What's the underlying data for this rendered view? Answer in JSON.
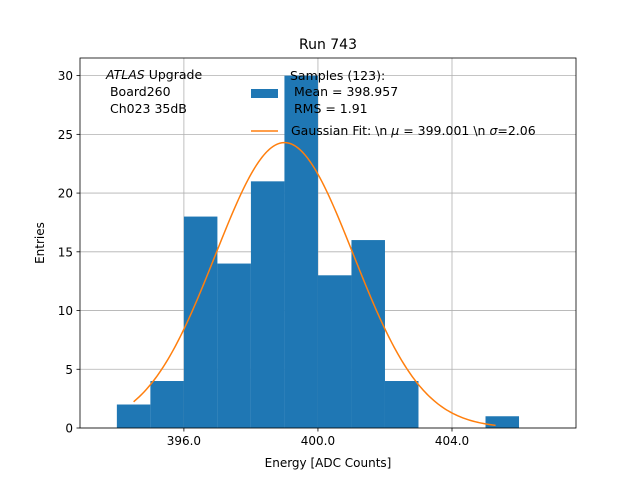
{
  "chart_data": {
    "type": "bar",
    "title": "Run 743",
    "xlabel": "Energy [ADC Counts]",
    "ylabel": "Entries",
    "xlim": [
      392.9,
      407.7
    ],
    "ylim": [
      0,
      31.5
    ],
    "grid": true,
    "xticks": [
      396,
      400,
      404
    ],
    "xtick_labels": [
      "396.0",
      "400.0",
      "404.0"
    ],
    "yticks": [
      0,
      5,
      10,
      15,
      20,
      25,
      30
    ],
    "ytick_labels": [
      "0",
      "5",
      "10",
      "15",
      "20",
      "25",
      "30"
    ],
    "histogram": {
      "name": "Samples",
      "color": "#1f77b4",
      "bin_edges": [
        394,
        395,
        396,
        397,
        398,
        399,
        400,
        401,
        402,
        403,
        404,
        405,
        406
      ],
      "counts": [
        2,
        4,
        18,
        14,
        21,
        30,
        13,
        16,
        4,
        0,
        0,
        1
      ]
    },
    "fit": {
      "name": "Gaussian Fit",
      "color": "#ff7f0e",
      "mu": 399.001,
      "sigma": 2.06,
      "amplitude": 24.3,
      "x_range": [
        394.5,
        405.3
      ]
    },
    "annotation_lines": [
      "ATLAS Upgrade",
      " Board260",
      " Ch023 35dB"
    ],
    "annotation_italic": "ATLAS",
    "legend": {
      "position": "top-right",
      "entries": [
        {
          "series": "histogram",
          "lines": [
            "Samples (123):",
            " Mean = 398.957",
            " RMS = 1.91"
          ]
        },
        {
          "series": "fit",
          "prefix": "Gaussian Fit: \\n ",
          "mu_symbol": "μ",
          "mid": " = 399.001 \\n ",
          "sigma_symbol": "σ",
          "suffix": "=2.06"
        }
      ]
    }
  }
}
